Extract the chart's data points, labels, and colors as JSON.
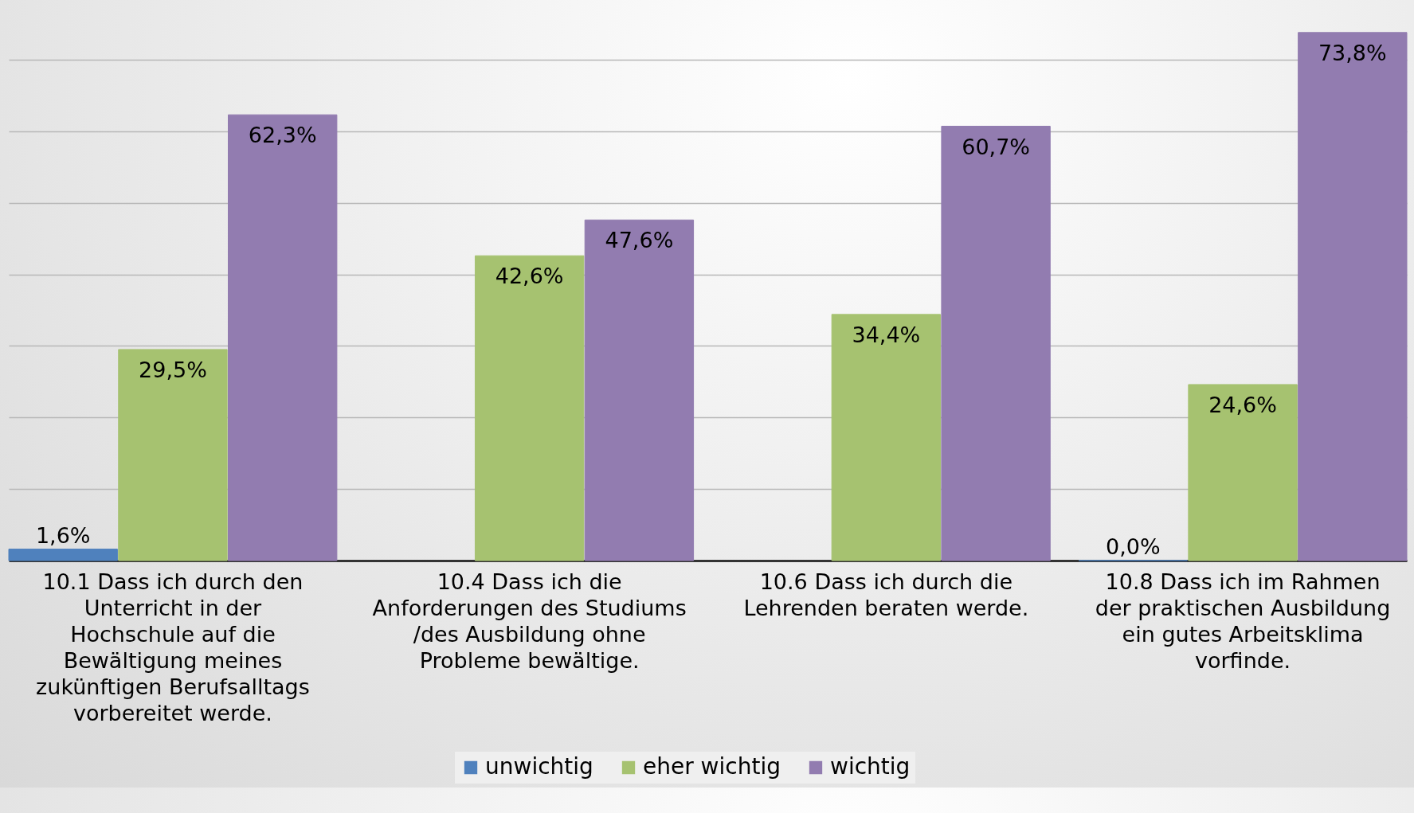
{
  "chart_data": {
    "type": "bar",
    "categories": [
      "10.1 Dass ich durch den Unterricht in der Hochschule auf die Bewältigung meines zukünftigen Berufsalltags vorbereitet werde.",
      "10.4 Dass ich die Anforderungen des Studiums /des Ausbildung ohne Probleme bewältige.",
      "10.6 Dass ich durch die Lehrenden beraten werde.",
      "10.8 Dass ich im Rahmen der praktischen Ausbildung ein gutes Arbeitsklima vorfinde."
    ],
    "series": [
      {
        "name": "unwichtig",
        "color": "#4f81bd",
        "values": [
          1.6,
          null,
          null,
          0.0
        ],
        "value_labels": [
          "1,6%",
          null,
          null,
          "0,0%"
        ]
      },
      {
        "name": "eher wichtig",
        "color": "#a6c270",
        "values": [
          29.5,
          42.6,
          34.4,
          24.6
        ],
        "value_labels": [
          "29,5%",
          "42,6%",
          "34,4%",
          "24,6%"
        ]
      },
      {
        "name": "wichtig",
        "color": "#927cb0",
        "values": [
          62.3,
          47.6,
          60.7,
          73.8
        ],
        "value_labels": [
          "62,3%",
          "47,6%",
          "60,7%",
          "73,8%"
        ]
      }
    ],
    "ylim": [
      0,
      74
    ],
    "yticks": [
      {
        "value": 0,
        "label": null
      },
      {
        "value": 10,
        "label": null
      },
      {
        "value": 20,
        "label": null
      },
      {
        "value": 30,
        "label": null
      },
      {
        "value": 40,
        "label": null
      },
      {
        "value": 50,
        "label": null
      },
      {
        "value": 60,
        "label": null
      },
      {
        "value": 70,
        "label": null
      }
    ],
    "grid": true,
    "tick_labels": "x",
    "legend": "bottom"
  }
}
